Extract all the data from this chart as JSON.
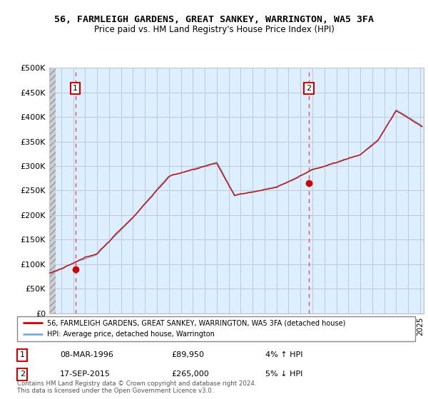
{
  "title": "56, FARMLEIGH GARDENS, GREAT SANKEY, WARRINGTON, WA5 3FA",
  "subtitle": "Price paid vs. HM Land Registry's House Price Index (HPI)",
  "ylabel_ticks": [
    "£0",
    "£50K",
    "£100K",
    "£150K",
    "£200K",
    "£250K",
    "£300K",
    "£350K",
    "£400K",
    "£450K",
    "£500K"
  ],
  "ytick_values": [
    0,
    50000,
    100000,
    150000,
    200000,
    250000,
    300000,
    350000,
    400000,
    450000,
    500000
  ],
  "purchase1_date": "08-MAR-1996",
  "purchase1_price": 89950,
  "purchase1_price_str": "£89,950",
  "purchase1_hpi": "4% ↑ HPI",
  "purchase1_x": 1996.18,
  "purchase2_date": "17-SEP-2015",
  "purchase2_price": 265000,
  "purchase2_price_str": "£265,000",
  "purchase2_hpi": "5% ↓ HPI",
  "purchase2_x": 2015.71,
  "legend_line1": "56, FARMLEIGH GARDENS, GREAT SANKEY, WARRINGTON, WA5 3FA (detached house)",
  "legend_line2": "HPI: Average price, detached house, Warrington",
  "footnote": "Contains HM Land Registry data © Crown copyright and database right 2024.\nThis data is licensed under the Open Government Licence v3.0.",
  "hpi_color": "#7aaddc",
  "price_color": "#cc0000",
  "plot_bg_color": "#ddeeff",
  "grid_color": "#c0c8d8",
  "xmin": 1994.0,
  "xmax": 2025.3,
  "ymin": 0,
  "ymax": 500000
}
